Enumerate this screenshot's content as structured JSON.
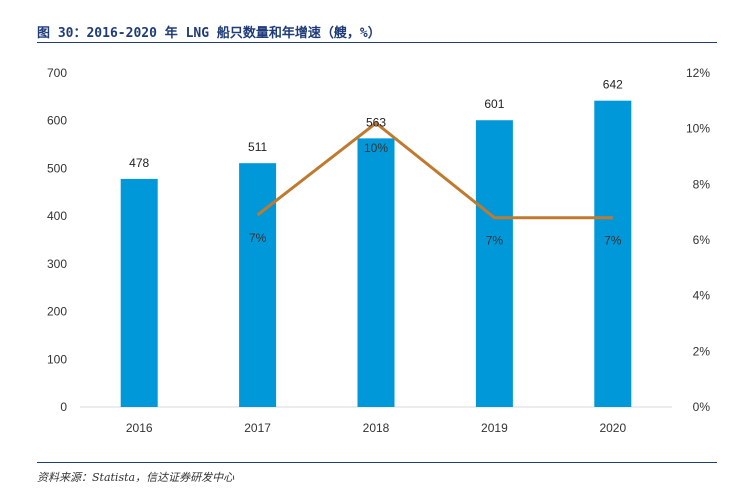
{
  "figure": {
    "title": "图 30：2016-2020 年 LNG 船只数量和年增速（艘，%）",
    "source": "资料来源：Statista，信达证券研发中心"
  },
  "colors": {
    "bar": "#0098d8",
    "line": "#c07a30",
    "rule": "#1f3c78"
  },
  "chart_data": {
    "type": "bar",
    "categories": [
      "2016",
      "2017",
      "2018",
      "2019",
      "2020"
    ],
    "series": [
      {
        "type": "bar",
        "axis": "left",
        "values": [
          478,
          511,
          563,
          601,
          642
        ],
        "labels": [
          "478",
          "511",
          "563",
          "601",
          "642"
        ]
      },
      {
        "type": "line",
        "axis": "right",
        "values": [
          null,
          6.9,
          10.2,
          6.8,
          6.8
        ],
        "labels": [
          null,
          "7%",
          "10%",
          "7%",
          "7%"
        ]
      }
    ],
    "ylim": [
      0,
      700
    ],
    "yticks": [
      "0",
      "100",
      "200",
      "300",
      "400",
      "500",
      "600",
      "700"
    ],
    "y2lim": [
      0,
      12
    ],
    "y2ticks": [
      "0%",
      "2%",
      "4%",
      "6%",
      "8%",
      "10%",
      "12%"
    ],
    "xlabel": "",
    "ylabel": "",
    "grid": false,
    "legend": "none"
  }
}
